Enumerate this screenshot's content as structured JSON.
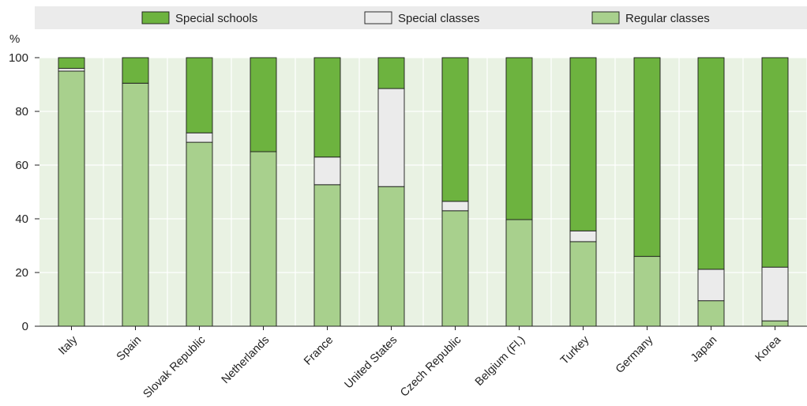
{
  "chart_data": {
    "type": "bar",
    "stacked": true,
    "y_unit": "%",
    "ylim": [
      0,
      100
    ],
    "yticks": [
      0,
      20,
      40,
      60,
      80,
      100
    ],
    "grid": true,
    "legend_position": "top",
    "categories": [
      "Italy",
      "Spain",
      "Slovak Republic",
      "Netherlands",
      "France",
      "United States",
      "Czech Republic",
      "Belgium (Fl.)",
      "Turkey",
      "Germany",
      "Japan",
      "Korea"
    ],
    "series": [
      {
        "name": "Regular classes",
        "color": "#a8d08d",
        "values": [
          95,
          90.5,
          68.5,
          65,
          52.7,
          52,
          43,
          39.7,
          31.5,
          26,
          9.5,
          2
        ]
      },
      {
        "name": "Special classes",
        "color": "#ebebeb",
        "values": [
          1,
          0,
          3.5,
          0,
          10.3,
          36.5,
          3.5,
          0,
          4,
          0,
          11.7,
          20
        ]
      },
      {
        "name": "Special schools",
        "color": "#6db33f",
        "values": [
          4,
          9.5,
          28,
          35,
          37,
          11.5,
          53.5,
          60.3,
          64.5,
          74,
          78.8,
          78
        ]
      }
    ],
    "legend_order": [
      "Special schools",
      "Special classes",
      "Regular classes"
    ]
  },
  "colors": {
    "plot_background": "#e9f2e3",
    "grid": "#ffffff",
    "legend_background": "#ebebeb"
  }
}
